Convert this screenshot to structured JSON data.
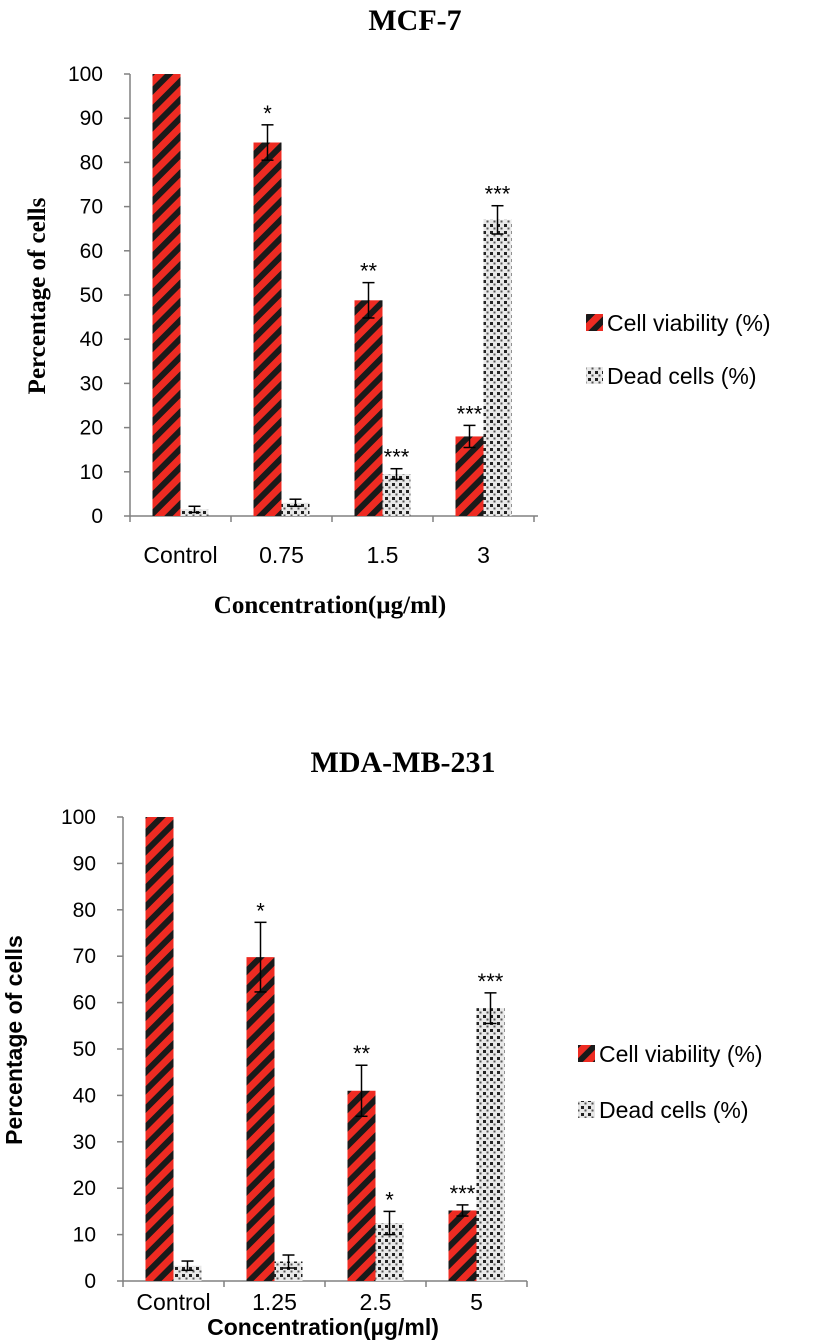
{
  "colors": {
    "viability": "#ee2b22",
    "stripe": "#1a1a1a",
    "dead_bg": "#e8e8e8",
    "dead_dot": "#222222",
    "axis": "#808080"
  },
  "chart_data": [
    {
      "type": "bar",
      "title": "MCF-7",
      "xlabel": "Concentration(µg/ml)",
      "ylabel": "Percentage of cells",
      "ylim": [
        0,
        100
      ],
      "yticks": [
        "0",
        "10",
        "20",
        "30",
        "40",
        "50",
        "60",
        "70",
        "80",
        "90",
        "100"
      ],
      "categories": [
        "Control",
        "0.75",
        "1.5",
        "3"
      ],
      "legend_position": "right",
      "series": [
        {
          "name": "Cell viability (%)",
          "values": [
            100,
            84.5,
            48.8,
            18
          ],
          "errors": [
            0,
            4,
            4,
            2.5
          ],
          "significance": [
            "",
            "*",
            "**",
            "***"
          ]
        },
        {
          "name": "Dead cells (%)",
          "values": [
            1.5,
            3,
            9.5,
            67
          ],
          "errors": [
            0.7,
            0.8,
            1.2,
            3.2
          ],
          "significance": [
            "",
            "",
            "***",
            "***"
          ]
        }
      ]
    },
    {
      "type": "bar",
      "title": "MDA-MB-231",
      "xlabel": "Concentration(µg/ml)",
      "ylabel": "Percentage of cells",
      "ylim": [
        0,
        100
      ],
      "yticks": [
        "0",
        "10",
        "20",
        "30",
        "40",
        "50",
        "60",
        "70",
        "80",
        "90",
        "100"
      ],
      "categories": [
        "Control",
        "1.25",
        "2.5",
        "5"
      ],
      "legend_position": "right",
      "series": [
        {
          "name": "Cell viability (%)",
          "values": [
            100,
            69.8,
            41,
            15.2
          ],
          "errors": [
            0,
            7.5,
            5.5,
            1.2
          ],
          "significance": [
            "",
            "*",
            "**",
            "***"
          ]
        },
        {
          "name": "Dead cells (%)",
          "values": [
            3.3,
            4.2,
            12.5,
            58.8
          ],
          "errors": [
            1,
            1.4,
            2.5,
            3.3
          ],
          "significance": [
            "",
            "",
            "*",
            "***"
          ]
        }
      ]
    }
  ]
}
